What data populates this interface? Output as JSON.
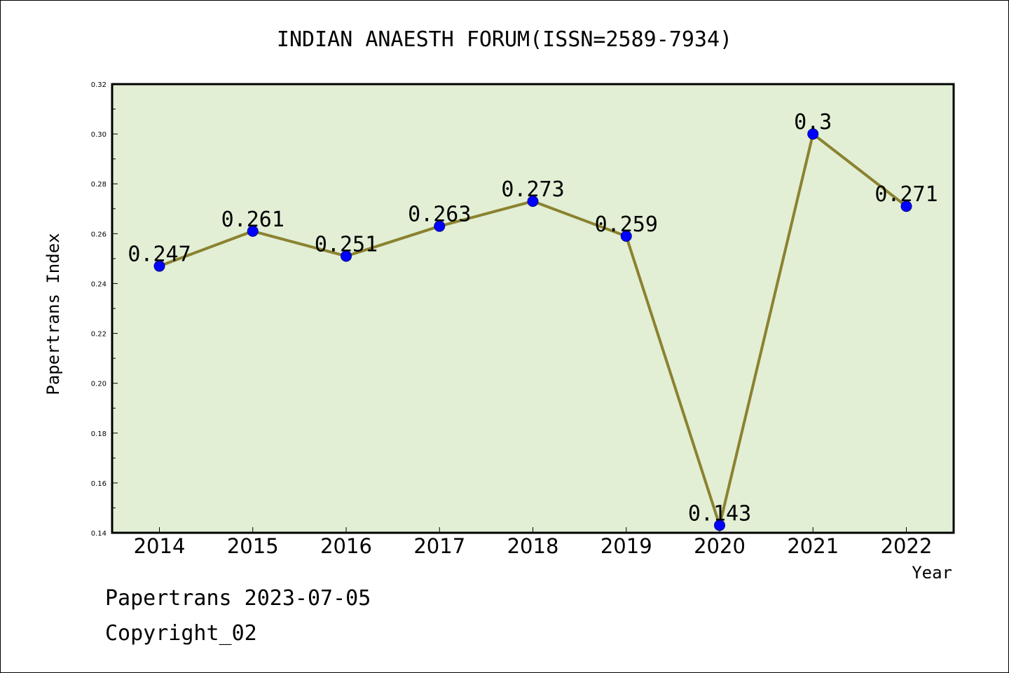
{
  "chart_data": {
    "type": "line",
    "title": "INDIAN ANAESTH FORUM(ISSN=2589-7934)",
    "xlabel": "Year",
    "ylabel": "Papertrans Index",
    "categories": [
      "2014",
      "2015",
      "2016",
      "2017",
      "2018",
      "2019",
      "2020",
      "2021",
      "2022"
    ],
    "values": [
      0.247,
      0.261,
      0.251,
      0.263,
      0.273,
      0.259,
      0.143,
      0.3,
      0.271
    ],
    "data_labels": [
      "0.247",
      "0.261",
      "0.251",
      "0.263",
      "0.273",
      "0.259",
      "0.143",
      "0.3",
      "0.271"
    ],
    "ylim": [
      0.14,
      0.32
    ],
    "yticks": [
      "0.14",
      "0.16",
      "0.18",
      "0.20",
      "0.22",
      "0.24",
      "0.26",
      "0.28",
      "0.30",
      "0.32"
    ],
    "grid": false,
    "colors": {
      "line": "#8b8230",
      "marker": "#0000ff",
      "plot_bg": "#e2efd5"
    }
  },
  "footer": {
    "line1": "Papertrans 2023-07-05",
    "line2": "Copyright_02"
  }
}
